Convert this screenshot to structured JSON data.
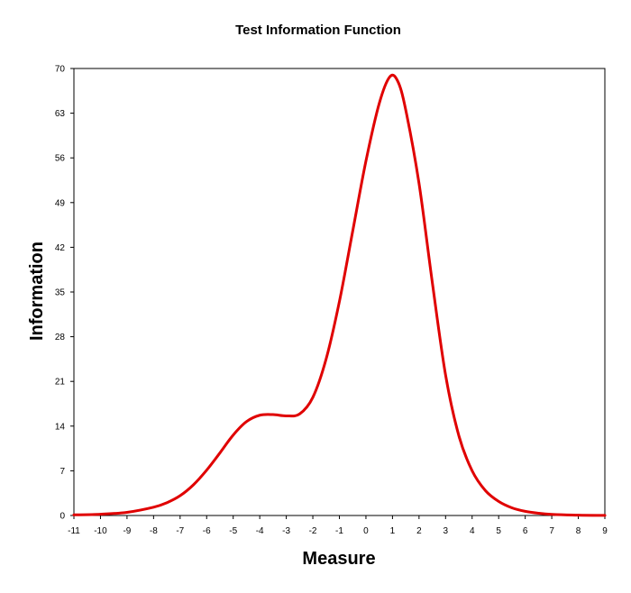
{
  "chart_data": {
    "type": "line",
    "title": "Test Information Function",
    "xlabel": "Measure",
    "ylabel": "Information",
    "xlim": [
      -11,
      9
    ],
    "ylim": [
      0,
      70
    ],
    "x_ticks": [
      -11,
      -10,
      -9,
      -8,
      -7,
      -6,
      -5,
      -4,
      -3,
      -2,
      -1,
      0,
      1,
      2,
      3,
      4,
      5,
      6,
      7,
      8,
      9
    ],
    "y_ticks": [
      0,
      7,
      14,
      21,
      28,
      35,
      42,
      49,
      56,
      63,
      70
    ],
    "grid": false,
    "legend": "none",
    "series": [
      {
        "color": "#e00000",
        "x": [
          -11,
          -10,
          -9,
          -8,
          -7.5,
          -7,
          -6.5,
          -6,
          -5.5,
          -5,
          -4.5,
          -4,
          -3.5,
          -3,
          -2.5,
          -2,
          -1.5,
          -1,
          -0.5,
          0,
          0.5,
          0.9,
          1.2,
          1.5,
          2,
          2.5,
          3,
          3.5,
          4,
          4.5,
          5,
          5.5,
          6,
          6.5,
          7,
          8,
          9
        ],
        "y": [
          0.1,
          0.2,
          0.5,
          1.3,
          2.0,
          3.1,
          4.8,
          7.1,
          9.8,
          12.6,
          14.7,
          15.7,
          15.8,
          15.6,
          15.9,
          18.5,
          24.5,
          33.5,
          44.5,
          55.5,
          64.5,
          68.7,
          68.0,
          63.5,
          52.0,
          36.5,
          22.0,
          12.5,
          7.0,
          3.9,
          2.2,
          1.2,
          0.65,
          0.35,
          0.18,
          0.05,
          0.01
        ]
      }
    ]
  }
}
